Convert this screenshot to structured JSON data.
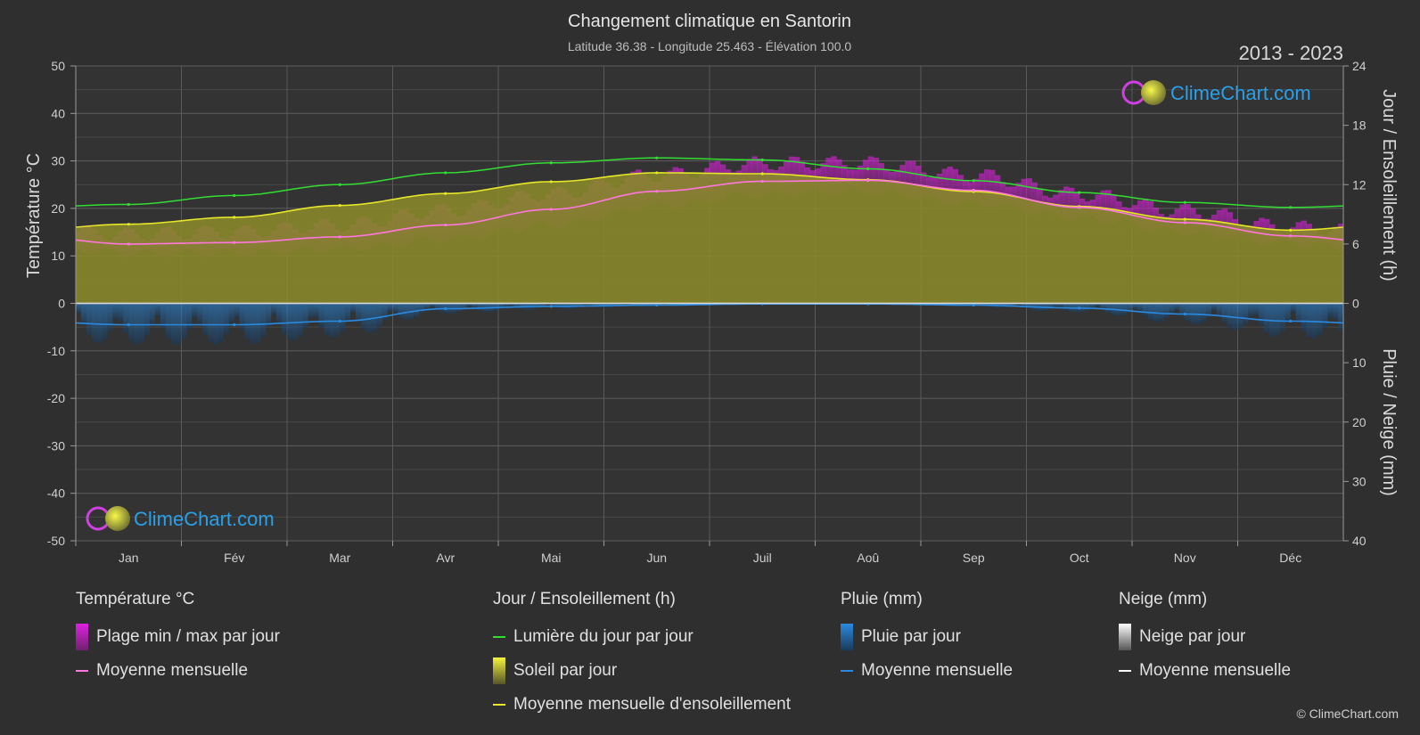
{
  "chart_data": {
    "type": "area",
    "title": "Changement climatique en Santorin",
    "subtitle": "Latitude 36.38 - Longitude 25.463 - Élévation 100.0",
    "period": "2013 - 2023",
    "ylabel_left": "Température °C",
    "ylabel_right_top": "Jour / Ensoleillement (h)",
    "ylabel_right_bottom": "Pluie / Neige (mm)",
    "left_ticks": [
      "50",
      "40",
      "30",
      "20",
      "10",
      "0",
      "-10",
      "-20",
      "-30",
      "-40",
      "-50"
    ],
    "right_top_ticks": [
      "24",
      "18",
      "12",
      "6",
      "0"
    ],
    "right_bottom_ticks": [
      "10",
      "20",
      "30",
      "40"
    ],
    "ylim_temp": [
      -50,
      50
    ],
    "ylim_hours": [
      0,
      24
    ],
    "ylim_precip_mm": [
      0,
      40
    ],
    "categories": [
      "Jan",
      "Fév",
      "Mar",
      "Avr",
      "Mai",
      "Jun",
      "Juil",
      "Aoû",
      "Sep",
      "Oct",
      "Nov",
      "Déc"
    ],
    "daylight_h": [
      10.0,
      10.9,
      12.0,
      13.2,
      14.2,
      14.7,
      14.5,
      13.6,
      12.4,
      11.2,
      10.2,
      9.7
    ],
    "sunshine_h": [
      8.0,
      8.7,
      9.9,
      11.1,
      12.3,
      13.2,
      13.1,
      12.5,
      11.3,
      9.8,
      8.5,
      7.4
    ],
    "temp_mean_c": [
      12.5,
      12.8,
      14.0,
      16.5,
      19.8,
      23.6,
      25.7,
      25.9,
      23.8,
      20.2,
      17.0,
      14.2
    ],
    "temp_max_c": [
      14.5,
      15.0,
      16.5,
      19.5,
      23.0,
      27.0,
      29.5,
      29.5,
      27.0,
      23.0,
      19.5,
      16.0
    ],
    "temp_min_c": [
      10.5,
      10.5,
      11.5,
      13.5,
      16.5,
      20.5,
      23.0,
      23.5,
      21.0,
      18.0,
      15.0,
      12.5
    ],
    "rain_mean_mm": [
      3.6,
      3.6,
      3.0,
      0.9,
      0.5,
      0.3,
      0.1,
      0.1,
      0.3,
      0.8,
      1.8,
      3.0
    ],
    "snow_mean_mm": [
      0,
      0,
      0,
      0,
      0,
      0,
      0,
      0,
      0,
      0,
      0,
      0
    ],
    "grid": true,
    "colors": {
      "background": "#2f2f2f",
      "daylight": "#33dd33",
      "sunshine_fill": "#8a8a2a",
      "sunshine_line": "#e6e62a",
      "temp_range": "#c040b0",
      "temp_mean": "#ff77dd",
      "rain": "#2a7fd0",
      "rain_mean": "#2a8ae0",
      "snow_mean": "#ffffff",
      "brand": "#29a0e8"
    }
  },
  "brand": {
    "name": "ClimeChart.com",
    "copyright": "© ClimeChart.com"
  },
  "legend": {
    "temp": {
      "title": "Température °C",
      "range": "Plage min / max par jour",
      "mean": "Moyenne mensuelle"
    },
    "sun": {
      "title": "Jour / Ensoleillement (h)",
      "daylight": "Lumière du jour par jour",
      "sunshine": "Soleil par jour",
      "mean": "Moyenne mensuelle d'ensoleillement"
    },
    "rain": {
      "title": "Pluie (mm)",
      "daily": "Pluie par jour",
      "mean": "Moyenne mensuelle"
    },
    "snow": {
      "title": "Neige (mm)",
      "daily": "Neige par jour",
      "mean": "Moyenne mensuelle"
    }
  }
}
